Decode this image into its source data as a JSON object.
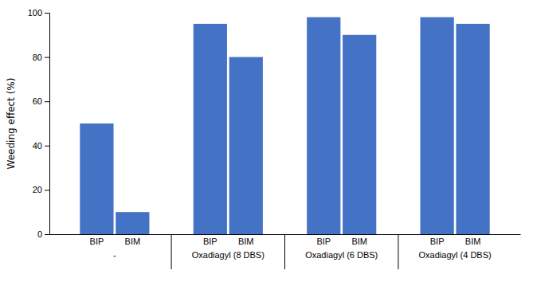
{
  "chart_data": {
    "type": "bar",
    "categories": [
      "-",
      "Oxadiagyl (8 DBS)",
      "Oxadiagyl (6 DBS)",
      "Oxadiagyl (4 DBS)"
    ],
    "series": [
      {
        "name": "BIP",
        "color": "#4472C4",
        "values": [
          50,
          95,
          98,
          98
        ]
      },
      {
        "name": "BIM",
        "color": "#4472C4",
        "values": [
          10,
          80,
          90,
          95
        ]
      }
    ],
    "ylabel": "Weeding effect (%)",
    "ylim": [
      0,
      100
    ],
    "yticks": [
      0,
      20,
      40,
      60,
      80,
      100
    ],
    "grid": false
  }
}
